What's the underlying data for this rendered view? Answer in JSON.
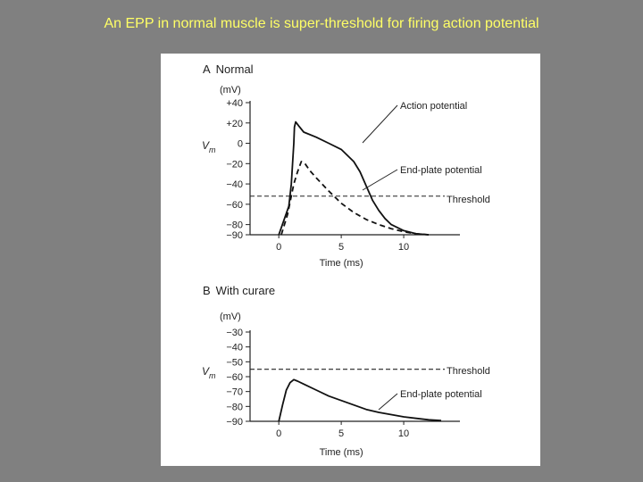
{
  "slide": {
    "title": "An EPP in normal muscle is super-threshold for firing action potential"
  },
  "chart_data": [
    {
      "type": "line",
      "panel_label": "A",
      "title": "Normal",
      "ylabel_symbol": "V",
      "ylabel_sub": "m",
      "yunit": "(mV)",
      "xlabel": "Time (ms)",
      "ylim": [
        -90,
        40
      ],
      "xlim": [
        -2.3,
        14.5
      ],
      "yticks": [
        {
          "v": 40,
          "label": "+40"
        },
        {
          "v": 20,
          "label": "+20"
        },
        {
          "v": 0,
          "label": "0"
        },
        {
          "v": -20,
          "label": "−20"
        },
        {
          "v": -40,
          "label": "−40"
        },
        {
          "v": -60,
          "label": "−60"
        },
        {
          "v": -80,
          "label": "−80"
        },
        {
          "v": -90,
          "label": "−90"
        }
      ],
      "xticks": [
        {
          "v": 0,
          "label": "0"
        },
        {
          "v": 5,
          "label": "5"
        },
        {
          "v": 10,
          "label": "10"
        }
      ],
      "series": [
        {
          "name": "Action potential",
          "style": "solid",
          "x": [
            0,
            0.4,
            0.8,
            1.0,
            1.2,
            1.25,
            1.35,
            1.6,
            2.0,
            3.0,
            4.0,
            5.0,
            6.0,
            6.5,
            7.0,
            7.5,
            8.0,
            8.5,
            9.0,
            10.0,
            11.0,
            12.0
          ],
          "y": [
            -90,
            -76,
            -62,
            -40,
            0,
            16,
            21,
            17,
            11,
            6,
            0,
            -6,
            -18,
            -28,
            -42,
            -56,
            -66,
            -74,
            -80,
            -86,
            -89,
            -90
          ]
        },
        {
          "name": "End-plate potential",
          "style": "dashed",
          "x": [
            0.2,
            0.7,
            1.2,
            1.5,
            1.8,
            2.1,
            2.5,
            3.0,
            4.0,
            5.0,
            6.0,
            7.0,
            8.0,
            9.0,
            10.0,
            11.0,
            12.0
          ],
          "y": [
            -90,
            -70,
            -40,
            -28,
            -18,
            -20,
            -27,
            -34,
            -47,
            -59,
            -68,
            -75,
            -80,
            -84,
            -87,
            -89,
            -90
          ]
        }
      ],
      "reference_lines": [
        {
          "name": "Threshold",
          "y": -52,
          "style": "dashed"
        }
      ],
      "annotations": [
        {
          "text": "Action potential",
          "target": "Action potential"
        },
        {
          "text": "End-plate potential",
          "target": "End-plate potential"
        },
        {
          "text": "Threshold",
          "target": "Threshold"
        }
      ]
    },
    {
      "type": "line",
      "panel_label": "B",
      "title": "With curare",
      "ylabel_symbol": "V",
      "ylabel_sub": "m",
      "yunit": "(mV)",
      "xlabel": "Time (ms)",
      "ylim": [
        -90,
        -30
      ],
      "xlim": [
        -2.3,
        14.5
      ],
      "yticks": [
        {
          "v": -30,
          "label": "−30"
        },
        {
          "v": -40,
          "label": "−40"
        },
        {
          "v": -50,
          "label": "−50"
        },
        {
          "v": -60,
          "label": "−60"
        },
        {
          "v": -70,
          "label": "−70"
        },
        {
          "v": -80,
          "label": "−80"
        },
        {
          "v": -90,
          "label": "−90"
        }
      ],
      "xticks": [
        {
          "v": 0,
          "label": "0"
        },
        {
          "v": 5,
          "label": "5"
        },
        {
          "v": 10,
          "label": "10"
        }
      ],
      "series": [
        {
          "name": "End-plate potential",
          "style": "solid",
          "x": [
            0,
            0.3,
            0.6,
            0.9,
            1.2,
            1.5,
            2.0,
            3.0,
            4.0,
            5.0,
            6.0,
            7.0,
            8.0,
            9.0,
            10.0,
            11.0,
            12.0,
            13.0
          ],
          "y": [
            -90,
            -79,
            -69,
            -64,
            -62,
            -63,
            -65,
            -69,
            -73,
            -76,
            -79,
            -82,
            -84,
            -85.5,
            -87,
            -88,
            -89,
            -89.5
          ]
        }
      ],
      "reference_lines": [
        {
          "name": "Threshold",
          "y": -55,
          "style": "dashed"
        }
      ],
      "annotations": [
        {
          "text": "Threshold",
          "target": "Threshold"
        },
        {
          "text": "End-plate potential",
          "target": "End-plate potential"
        }
      ]
    }
  ]
}
